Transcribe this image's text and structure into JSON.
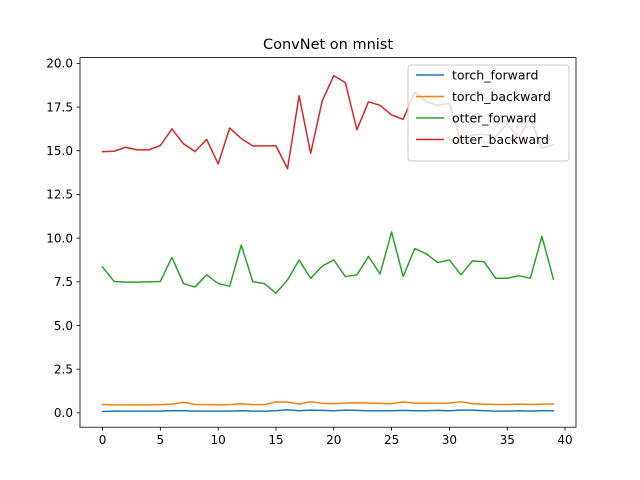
{
  "chart_data": {
    "type": "line",
    "title": "ConvNet on mnist",
    "xlabel": "",
    "ylabel": "",
    "xlim": [
      -1.95,
      40.95
    ],
    "ylim": [
      -0.82,
      20.33
    ],
    "xticks": [
      0,
      5,
      10,
      15,
      20,
      25,
      30,
      35,
      40
    ],
    "yticks": [
      0.0,
      2.5,
      5.0,
      7.5,
      10.0,
      12.5,
      15.0,
      17.5,
      20.0
    ],
    "ytick_labels": [
      "0.0",
      "2.5",
      "5.0",
      "7.5",
      "10.0",
      "12.5",
      "15.0",
      "17.5",
      "20.0"
    ],
    "grid": false,
    "legend_position": "top-right",
    "x": [
      0,
      1,
      2,
      3,
      4,
      5,
      6,
      7,
      8,
      9,
      10,
      11,
      12,
      13,
      14,
      15,
      16,
      17,
      18,
      19,
      20,
      21,
      22,
      23,
      24,
      25,
      26,
      27,
      28,
      29,
      30,
      31,
      32,
      33,
      34,
      35,
      36,
      37,
      38,
      39
    ],
    "series": [
      {
        "name": "torch_forward",
        "color": "#1f77b4",
        "values": [
          0.08,
          0.1,
          0.1,
          0.1,
          0.1,
          0.1,
          0.13,
          0.12,
          0.1,
          0.1,
          0.1,
          0.1,
          0.12,
          0.1,
          0.1,
          0.12,
          0.18,
          0.12,
          0.16,
          0.14,
          0.12,
          0.16,
          0.14,
          0.12,
          0.12,
          0.12,
          0.14,
          0.12,
          0.12,
          0.14,
          0.12,
          0.16,
          0.16,
          0.12,
          0.1,
          0.1,
          0.12,
          0.1,
          0.12,
          0.12
        ]
      },
      {
        "name": "torch_backward",
        "color": "#ff7f0e",
        "values": [
          0.48,
          0.46,
          0.46,
          0.46,
          0.46,
          0.47,
          0.5,
          0.6,
          0.48,
          0.47,
          0.46,
          0.47,
          0.52,
          0.47,
          0.47,
          0.63,
          0.62,
          0.5,
          0.64,
          0.54,
          0.52,
          0.56,
          0.58,
          0.56,
          0.54,
          0.52,
          0.63,
          0.55,
          0.56,
          0.54,
          0.56,
          0.64,
          0.52,
          0.5,
          0.48,
          0.48,
          0.5,
          0.48,
          0.5,
          0.5
        ]
      },
      {
        "name": "otter_forward",
        "color": "#2ca02c",
        "values": [
          8.35,
          7.52,
          7.48,
          7.48,
          7.5,
          7.52,
          8.9,
          7.4,
          7.2,
          7.9,
          7.4,
          7.25,
          9.6,
          7.5,
          7.4,
          6.85,
          7.6,
          8.75,
          7.7,
          8.4,
          8.75,
          7.8,
          7.9,
          8.95,
          7.95,
          10.35,
          7.8,
          9.4,
          9.1,
          8.6,
          8.75,
          7.9,
          8.7,
          8.65,
          7.7,
          7.7,
          7.85,
          7.7,
          10.1,
          7.65
        ]
      },
      {
        "name": "otter_backward",
        "color": "#d62728",
        "values": [
          14.95,
          14.97,
          15.2,
          15.05,
          15.05,
          15.3,
          16.25,
          15.4,
          14.95,
          15.65,
          14.25,
          16.3,
          15.7,
          15.27,
          15.28,
          15.28,
          13.97,
          18.15,
          14.85,
          17.85,
          19.3,
          18.9,
          16.2,
          17.8,
          17.6,
          17.05,
          16.8,
          18.35,
          17.8,
          17.6,
          17.7,
          15.5,
          15.9,
          15.95,
          15.8,
          16.55,
          15.75,
          16.85,
          15.15,
          15.35
        ]
      }
    ]
  }
}
